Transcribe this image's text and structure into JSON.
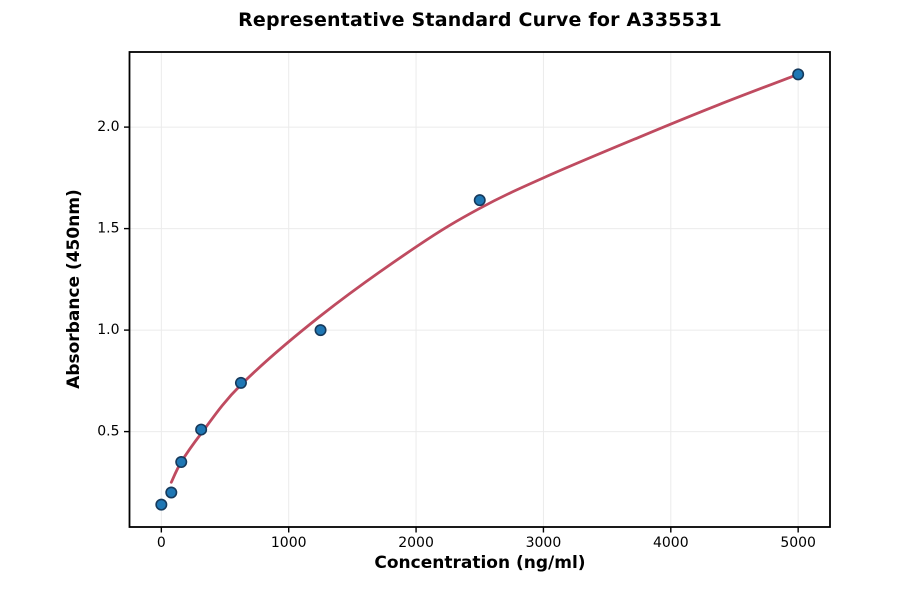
{
  "figure": {
    "background": "#ffffff"
  },
  "chart_data": {
    "type": "scatter",
    "title": "Representative Standard Curve for A335531",
    "xlabel": "Concentration (ng/ml)",
    "ylabel": "Absorbance (450nm)",
    "xlim": [
      -250,
      5250
    ],
    "ylim": [
      0.03,
      2.37
    ],
    "grid": true,
    "grid_color": "#ebebeb",
    "axis_color": "#000000",
    "x_ticks": [
      0,
      1000,
      2000,
      3000,
      4000,
      5000
    ],
    "x_tick_labels": [
      "0",
      "1000",
      "2000",
      "3000",
      "4000",
      "5000"
    ],
    "y_ticks": [
      0.5,
      1.0,
      1.5,
      2.0
    ],
    "y_tick_labels": [
      "0.5",
      "1.0",
      "1.5",
      "2.0"
    ],
    "series": [
      {
        "name": "standard-points",
        "type": "scatter",
        "marker_color": "#1f77b4",
        "marker_edge_color": "#163a5c",
        "x": [
          0,
          78.125,
          156.25,
          312.5,
          625,
          1250,
          2500,
          5000
        ],
        "y": [
          0.14,
          0.2,
          0.35,
          0.51,
          0.74,
          1.0,
          1.64,
          2.26
        ]
      },
      {
        "name": "fit-curve",
        "type": "line",
        "color": "#bf4b60",
        "x": [
          78.125,
          156.25,
          312.5,
          625,
          1250,
          2000,
          2500,
          3000,
          3750,
          4375,
          5000
        ],
        "y": [
          0.25,
          0.35,
          0.49,
          0.73,
          1.07,
          1.41,
          1.6,
          1.75,
          1.95,
          2.11,
          2.26
        ]
      }
    ]
  }
}
